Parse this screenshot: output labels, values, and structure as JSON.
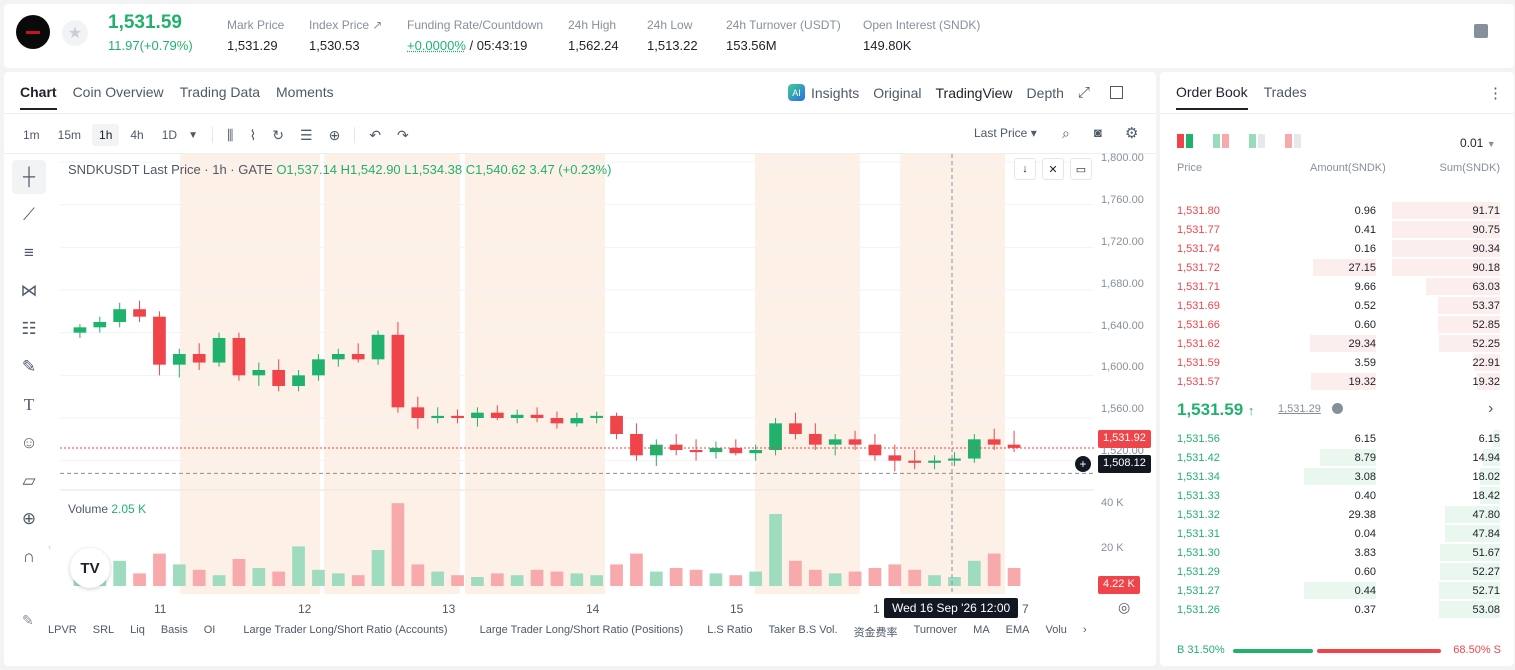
{
  "header": {
    "last_price": "1,531.59",
    "change": "11.97(+0.79%)",
    "stats": [
      {
        "label": "Mark Price",
        "value": "1,531.29"
      },
      {
        "label": "Index Price ↗",
        "value": "1,530.53"
      },
      {
        "label": "Funding Rate/Countdown",
        "value": "+0.0000%",
        "value2": "/ 05:43:19"
      },
      {
        "label": "24h High",
        "value": "1,562.24"
      },
      {
        "label": "24h Low",
        "value": "1,513.22"
      },
      {
        "label": "24h Turnover (USDT)",
        "value": "153.56M"
      },
      {
        "label": "Open Interest (SNDK)",
        "value": "149.80K"
      }
    ]
  },
  "chart_tabs": [
    "Chart",
    "Coin Overview",
    "Trading Data",
    "Moments"
  ],
  "view_tabs": {
    "insights": "Insights",
    "original": "Original",
    "tradingview": "TradingView",
    "depth": "Depth"
  },
  "timeframes": [
    "1m",
    "15m",
    "1h",
    "4h",
    "1D"
  ],
  "price_type": "Last Price ▾",
  "legend": {
    "symbol": "SNDKUSDT Last Price · 1h · GATE",
    "o": "O1,537.14",
    "h": "H1,542.90",
    "l": "L1,534.38",
    "c": "C1,540.62",
    "chg": "3.47 (+0.23%)"
  },
  "volume_legend": {
    "label": "Volume",
    "value": "2.05 K"
  },
  "price_badges": {
    "last": "1,531.92",
    "cross": "1,508.12",
    "vol": "4.22 K"
  },
  "crosshair_time": "Wed 16 Sep '26   12:00",
  "y_labels": [
    "1,800.00",
    "1,760.00",
    "1,720.00",
    "1,680.00",
    "1,640.00",
    "1,600.00",
    "1,560.00",
    "1,520.00"
  ],
  "vol_y_labels": [
    "40 K",
    "20 K"
  ],
  "x_labels": [
    "11",
    "12",
    "13",
    "14",
    "15",
    "1",
    "7"
  ],
  "indicators": [
    "LPVR",
    "SRL",
    "Liq",
    "Basis",
    "OI",
    "Large Trader Long/Short Ratio (Accounts)",
    "Large Trader Long/Short Ratio (Positions)",
    "L.S Ratio",
    "Taker B.S Vol.",
    "资金费率",
    "Turnover",
    "MA",
    "EMA",
    "Volu"
  ],
  "chart_data": {
    "type": "candlestick",
    "y_range": [
      1500,
      1800
    ],
    "ohlc": [
      [
        1640,
        1648,
        1635,
        1645
      ],
      [
        1645,
        1655,
        1640,
        1650
      ],
      [
        1650,
        1668,
        1645,
        1662
      ],
      [
        1662,
        1670,
        1650,
        1655
      ],
      [
        1655,
        1660,
        1600,
        1610
      ],
      [
        1610,
        1625,
        1598,
        1620
      ],
      [
        1620,
        1630,
        1605,
        1612
      ],
      [
        1612,
        1640,
        1608,
        1635
      ],
      [
        1635,
        1640,
        1595,
        1600
      ],
      [
        1600,
        1612,
        1590,
        1605
      ],
      [
        1605,
        1615,
        1585,
        1590
      ],
      [
        1590,
        1605,
        1585,
        1600
      ],
      [
        1600,
        1620,
        1595,
        1615
      ],
      [
        1615,
        1625,
        1608,
        1620
      ],
      [
        1620,
        1630,
        1612,
        1615
      ],
      [
        1615,
        1642,
        1610,
        1638
      ],
      [
        1638,
        1650,
        1565,
        1570
      ],
      [
        1570,
        1580,
        1550,
        1560
      ],
      [
        1560,
        1570,
        1555,
        1562
      ],
      [
        1562,
        1568,
        1555,
        1560
      ],
      [
        1560,
        1570,
        1552,
        1565
      ],
      [
        1565,
        1572,
        1558,
        1560
      ],
      [
        1560,
        1568,
        1555,
        1563
      ],
      [
        1563,
        1570,
        1556,
        1560
      ],
      [
        1560,
        1566,
        1550,
        1555
      ],
      [
        1555,
        1565,
        1552,
        1560
      ],
      [
        1560,
        1566,
        1555,
        1562
      ],
      [
        1562,
        1565,
        1540,
        1545
      ],
      [
        1545,
        1555,
        1520,
        1525
      ],
      [
        1525,
        1540,
        1515,
        1535
      ],
      [
        1535,
        1545,
        1525,
        1530
      ],
      [
        1530,
        1540,
        1520,
        1528
      ],
      [
        1528,
        1538,
        1522,
        1532
      ],
      [
        1532,
        1540,
        1525,
        1527
      ],
      [
        1527,
        1535,
        1520,
        1530
      ],
      [
        1530,
        1560,
        1525,
        1555
      ],
      [
        1555,
        1565,
        1540,
        1545
      ],
      [
        1545,
        1555,
        1530,
        1535
      ],
      [
        1535,
        1545,
        1525,
        1540
      ],
      [
        1540,
        1548,
        1530,
        1535
      ],
      [
        1535,
        1545,
        1520,
        1525
      ],
      [
        1525,
        1535,
        1510,
        1520
      ],
      [
        1520,
        1530,
        1512,
        1518
      ],
      [
        1518,
        1525,
        1512,
        1520
      ],
      [
        1520,
        1528,
        1515,
        1522
      ],
      [
        1522,
        1545,
        1518,
        1540
      ],
      [
        1540,
        1550,
        1530,
        1535
      ],
      [
        1535,
        1548,
        1528,
        1532
      ]
    ],
    "volumes": [
      8,
      10,
      14,
      7,
      18,
      12,
      9,
      6,
      15,
      10,
      8,
      22,
      9,
      7,
      6,
      20,
      46,
      12,
      8,
      6,
      5,
      7,
      6,
      9,
      8,
      7,
      6,
      12,
      18,
      8,
      10,
      9,
      7,
      6,
      8,
      40,
      14,
      9,
      7,
      8,
      10,
      12,
      9,
      6,
      5,
      14,
      18,
      10
    ]
  },
  "orderbook": {
    "tabs": [
      "Order Book",
      "Trades"
    ],
    "precision": "0.01",
    "headers": [
      "Price",
      "Amount(SNDK)",
      "Sum(SNDK)"
    ],
    "asks": [
      [
        "1,531.80",
        "0.96",
        "91.71"
      ],
      [
        "1,531.77",
        "0.41",
        "90.75"
      ],
      [
        "1,531.74",
        "0.16",
        "90.34"
      ],
      [
        "1,531.72",
        "27.15",
        "90.18"
      ],
      [
        "1,531.71",
        "9.66",
        "63.03"
      ],
      [
        "1,531.69",
        "0.52",
        "53.37"
      ],
      [
        "1,531.66",
        "0.60",
        "52.85"
      ],
      [
        "1,531.62",
        "29.34",
        "52.25"
      ],
      [
        "1,531.59",
        "3.59",
        "22.91"
      ],
      [
        "1,531.57",
        "19.32",
        "19.32"
      ]
    ],
    "ask_depth": [
      0.9,
      0.9,
      0.9,
      0.9,
      0.62,
      0.52,
      0.52,
      0.51,
      0.22,
      0.19
    ],
    "ask_amt_depth": [
      0,
      0,
      0,
      0.37,
      0,
      0,
      0,
      0.4,
      0,
      0.39
    ],
    "mid": {
      "price": "1,531.59",
      "arrow": "↑",
      "mark": "1,531.29"
    },
    "bids": [
      [
        "1,531.56",
        "6.15",
        "6.15"
      ],
      [
        "1,531.42",
        "8.79",
        "14.94"
      ],
      [
        "1,531.34",
        "3.08",
        "18.02"
      ],
      [
        "1,531.33",
        "0.40",
        "18.42"
      ],
      [
        "1,531.32",
        "29.38",
        "47.80"
      ],
      [
        "1,531.31",
        "0.04",
        "47.84"
      ],
      [
        "1,531.30",
        "3.83",
        "51.67"
      ],
      [
        "1,531.29",
        "0.60",
        "52.27"
      ],
      [
        "1,531.27",
        "0.44",
        "52.71"
      ],
      [
        "1,531.26",
        "0.37",
        "53.08"
      ]
    ],
    "bid_depth": [
      0.06,
      0.14,
      0.17,
      0.17,
      0.46,
      0.46,
      0.5,
      0.5,
      0.51,
      0.51
    ],
    "bid_amt_depth": [
      0,
      0.3,
      0.46,
      0,
      0,
      0,
      0,
      0,
      0.46,
      0
    ],
    "buy_ratio": "B 31.50%",
    "sell_ratio": "68.50% S"
  },
  "colors": {
    "up": "#20b26c",
    "down": "#ef454a"
  }
}
